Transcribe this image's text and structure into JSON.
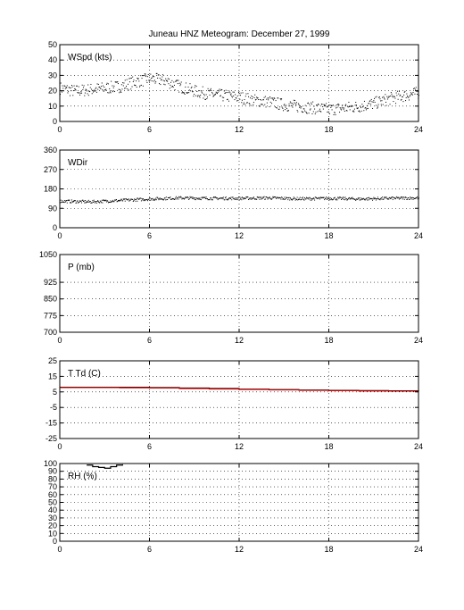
{
  "title": "Juneau HNZ Meteogram:   December 27, 1999",
  "colors": {
    "axes": "#000000",
    "grid": "#000000",
    "temp": "#000000",
    "dewpoint": "#cc0000"
  },
  "chart_data": [
    {
      "type": "scatter",
      "label": "WSpd (kts)",
      "ylim": [
        0,
        50
      ],
      "yticks": [
        0,
        10,
        20,
        30,
        40,
        50
      ],
      "xlim": [
        0,
        24
      ],
      "xticks": [
        0,
        6,
        12,
        18,
        24
      ],
      "grid": true,
      "trend": [
        [
          0,
          22
        ],
        [
          1,
          20
        ],
        [
          2,
          21
        ],
        [
          3,
          22
        ],
        [
          4,
          23
        ],
        [
          5,
          26
        ],
        [
          6,
          28
        ],
        [
          7,
          27
        ],
        [
          8,
          23
        ],
        [
          9,
          20
        ],
        [
          10,
          18
        ],
        [
          11,
          17
        ],
        [
          12,
          16
        ],
        [
          13,
          14
        ],
        [
          14,
          13
        ],
        [
          15,
          11
        ],
        [
          16,
          10
        ],
        [
          17,
          9
        ],
        [
          18,
          8
        ],
        [
          19,
          9
        ],
        [
          20,
          10
        ],
        [
          21,
          12
        ],
        [
          22,
          15
        ],
        [
          23,
          17
        ],
        [
          24,
          19
        ]
      ],
      "spread": 4
    },
    {
      "type": "scatter",
      "label": "WDir",
      "ylim": [
        0,
        360
      ],
      "yticks": [
        0,
        90,
        180,
        270,
        360
      ],
      "xlim": [
        0,
        24
      ],
      "xticks": [
        0,
        6,
        12,
        18,
        24
      ],
      "grid": true,
      "trend": [
        [
          0,
          125
        ],
        [
          2,
          122
        ],
        [
          4,
          128
        ],
        [
          6,
          135
        ],
        [
          8,
          140
        ],
        [
          10,
          138
        ],
        [
          12,
          138
        ],
        [
          14,
          140
        ],
        [
          16,
          136
        ],
        [
          18,
          138
        ],
        [
          20,
          135
        ],
        [
          22,
          138
        ],
        [
          24,
          140
        ]
      ],
      "spread": 7
    },
    {
      "type": "line",
      "label": "P (mb)",
      "ylim": [
        700,
        1050
      ],
      "yticks": [
        700,
        775,
        850,
        925,
        1050
      ],
      "xlim": [
        0,
        24
      ],
      "xticks": [
        0,
        6,
        12,
        18,
        24
      ],
      "grid": true,
      "series": []
    },
    {
      "type": "line",
      "label": "T Td (C)",
      "ylim": [
        -25,
        25
      ],
      "yticks": [
        -25,
        -15,
        -5,
        5,
        15,
        25
      ],
      "xlim": [
        0,
        24
      ],
      "xticks": [
        0,
        6,
        12,
        18,
        24
      ],
      "grid": true,
      "series": [
        {
          "key": "temp",
          "x": [
            0,
            2,
            4,
            6,
            8,
            10,
            12,
            14,
            16,
            18,
            20,
            22,
            24
          ],
          "y": [
            8,
            8,
            8,
            7.8,
            7.5,
            7.2,
            6.8,
            6.5,
            6.2,
            6,
            5.8,
            5.7,
            5.6
          ]
        },
        {
          "key": "dewpoint",
          "x": [
            0,
            2,
            4,
            6,
            8,
            10,
            12,
            14,
            16,
            18,
            20,
            22,
            24
          ],
          "y": [
            7.8,
            7.8,
            7.7,
            7.5,
            7.2,
            6.9,
            6.6,
            6.3,
            6,
            5.8,
            5.6,
            5.5,
            5.4
          ]
        }
      ]
    },
    {
      "type": "line",
      "label": "RH (%)",
      "ylim": [
        0,
        100
      ],
      "yticks": [
        0,
        10,
        20,
        30,
        40,
        50,
        60,
        70,
        80,
        90,
        100
      ],
      "xlim": [
        0,
        24
      ],
      "xticks": [
        0,
        6,
        12,
        18,
        24
      ],
      "grid": true,
      "series": [
        {
          "key": "rh",
          "x": [
            1.8,
            2.2,
            2.6,
            3.0,
            3.4,
            3.8,
            4.2
          ],
          "y": [
            98,
            96,
            95,
            94,
            96,
            98,
            99
          ]
        }
      ]
    }
  ]
}
